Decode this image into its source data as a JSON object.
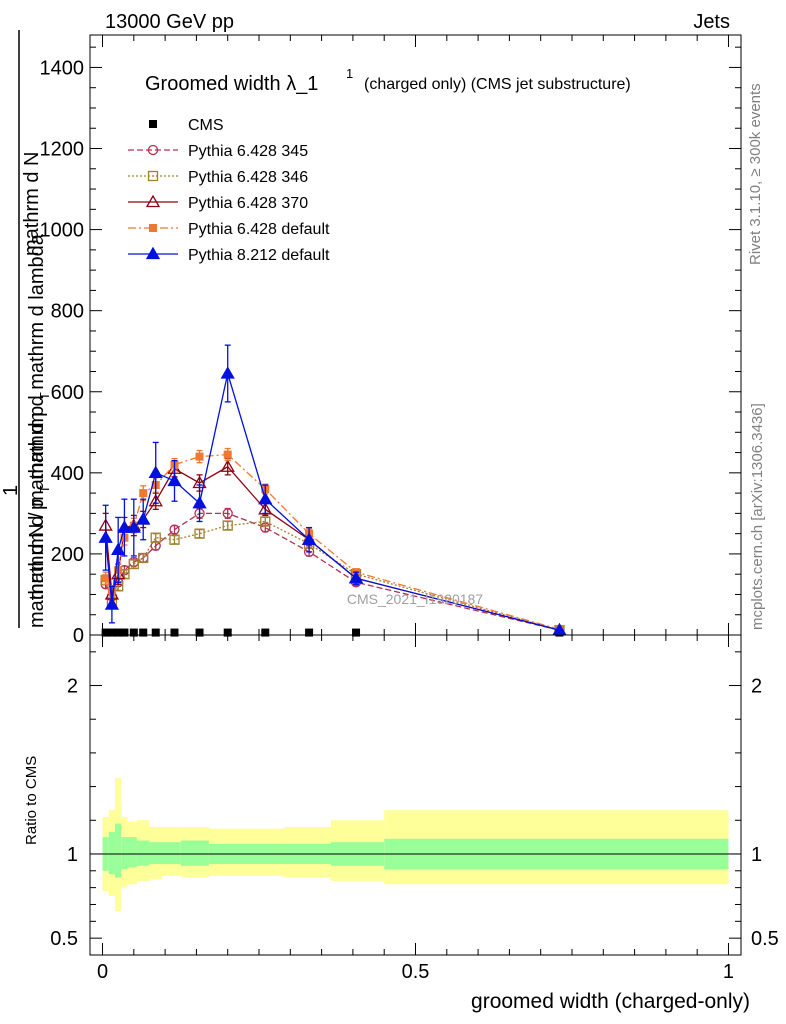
{
  "header": {
    "left": "13000 GeV pp",
    "right": "Jets"
  },
  "side": {
    "rivet": "Rivet 3.1.10, ≥ 300k events",
    "mcplots": "mcplots.cern.ch [arXiv:1306.3436]"
  },
  "watermark": "CMS_2021_I1920187",
  "chart_data": {
    "type": "line",
    "title_main": "Groomed width",
    "title_symbol": "λ_1",
    "title_sup": "1",
    "title_rest": "(charged only) (CMS jet substructure)",
    "ylabel_top_num": "mathrm d",
    "ylabel_top_num_N": "N",
    "ylabel_top_den": "mathrm d p",
    "ylabel_top_den_T": "T",
    "ylabel_top_den_rest": "mathrm d mathrm d lambda",
    "ylabel_bottom": "1",
    "ylabel_bottom_den": "mathrm d N / mathrm d p",
    "ylabel_bottom_den_T": "T",
    "ratio_ylabel": "Ratio to CMS",
    "xlabel": "groomed width (charged-only)",
    "xlim": [
      -0.02,
      1.02
    ],
    "ylim": [
      0,
      1480
    ],
    "ratio_ylim": [
      0.4,
      2.3
    ],
    "x_ticks": [
      {
        "value": 0,
        "label": "0"
      },
      {
        "value": 0.5,
        "label": "0.5"
      },
      {
        "value": 1,
        "label": "1"
      }
    ],
    "y_ticks": [
      {
        "value": 0,
        "label": "0"
      },
      {
        "value": 200,
        "label": "200"
      },
      {
        "value": 400,
        "label": "400"
      },
      {
        "value": 600,
        "label": "600"
      },
      {
        "value": 800,
        "label": "800"
      },
      {
        "value": 1000,
        "label": "1000"
      },
      {
        "value": 1200,
        "label": "1200"
      },
      {
        "value": 1400,
        "label": "1400"
      }
    ],
    "ratio_ticks": [
      {
        "value": 0.5,
        "label": "0.5"
      },
      {
        "value": 1,
        "label": "1"
      },
      {
        "value": 2,
        "label": "2"
      }
    ],
    "cms_x": [
      0.005,
      0.015,
      0.025,
      0.035,
      0.05,
      0.065,
      0.085,
      0.115,
      0.155,
      0.2,
      0.26,
      0.33,
      0.405,
      0.73
    ],
    "cms_y": [
      6,
      6,
      6,
      6,
      6,
      6,
      6,
      6,
      6,
      6,
      6,
      6,
      6,
      6
    ],
    "band_edges": [
      0,
      0.01,
      0.02,
      0.03,
      0.04,
      0.055,
      0.075,
      0.095,
      0.125,
      0.17,
      0.23,
      0.29,
      0.365,
      0.45,
      1.0
    ],
    "band_yellow": [
      [
        0.78,
        1.22
      ],
      [
        0.75,
        1.26
      ],
      [
        0.66,
        1.45
      ],
      [
        0.8,
        1.22
      ],
      [
        0.82,
        1.19
      ],
      [
        0.84,
        1.2
      ],
      [
        0.85,
        1.16
      ],
      [
        0.87,
        1.16
      ],
      [
        0.86,
        1.16
      ],
      [
        0.87,
        1.15
      ],
      [
        0.87,
        1.15
      ],
      [
        0.86,
        1.16
      ],
      [
        0.84,
        1.2
      ],
      [
        0.82,
        1.26
      ],
      [
        0.8,
        1.3
      ]
    ],
    "band_green": [
      [
        0.9,
        1.1
      ],
      [
        0.88,
        1.13
      ],
      [
        0.86,
        1.18
      ],
      [
        0.91,
        1.1
      ],
      [
        0.92,
        1.1
      ],
      [
        0.93,
        1.08
      ],
      [
        0.94,
        1.07
      ],
      [
        0.94,
        1.07
      ],
      [
        0.93,
        1.08
      ],
      [
        0.94,
        1.06
      ],
      [
        0.94,
        1.06
      ],
      [
        0.94,
        1.06
      ],
      [
        0.93,
        1.07
      ],
      [
        0.91,
        1.09
      ],
      [
        0.9,
        1.17
      ]
    ],
    "series": [
      {
        "name": "CMS",
        "color": "#000000",
        "marker": "square-filled",
        "dash": "",
        "x": [],
        "y": [],
        "err": []
      },
      {
        "name": "Pythia 6.428 345",
        "color": "#b03050",
        "marker": "circle-open",
        "dash": "6,3",
        "x": [
          0.005,
          0.015,
          0.025,
          0.035,
          0.05,
          0.065,
          0.085,
          0.115,
          0.155,
          0.2,
          0.26,
          0.33,
          0.405,
          0.73
        ],
        "y": [
          125,
          95,
          130,
          160,
          180,
          190,
          220,
          260,
          300,
          300,
          265,
          205,
          130,
          12
        ],
        "err": [
          10,
          8,
          10,
          10,
          10,
          10,
          10,
          10,
          12,
          12,
          10,
          10,
          8,
          3
        ]
      },
      {
        "name": "Pythia 6.428 346",
        "color": "#a08030",
        "marker": "square-open",
        "dash": "2,2",
        "x": [
          0.005,
          0.015,
          0.025,
          0.035,
          0.05,
          0.065,
          0.085,
          0.115,
          0.155,
          0.2,
          0.26,
          0.33,
          0.405,
          0.73
        ],
        "y": [
          135,
          80,
          120,
          150,
          175,
          190,
          240,
          235,
          250,
          270,
          280,
          225,
          150,
          12
        ],
        "err": [
          10,
          8,
          10,
          10,
          10,
          10,
          10,
          10,
          10,
          10,
          10,
          10,
          8,
          3
        ]
      },
      {
        "name": "Pythia 6.428 370",
        "color": "#900010",
        "marker": "triangle-open",
        "dash": "",
        "x": [
          0.005,
          0.015,
          0.025,
          0.035,
          0.05,
          0.065,
          0.085,
          0.115,
          0.155,
          0.2,
          0.26,
          0.33,
          0.405,
          0.73
        ],
        "y": [
          270,
          100,
          150,
          265,
          270,
          285,
          330,
          410,
          375,
          415,
          310,
          235,
          140,
          12
        ],
        "err": [
          30,
          20,
          25,
          25,
          25,
          20,
          20,
          20,
          20,
          20,
          15,
          15,
          10,
          3
        ]
      },
      {
        "name": "Pythia 6.428 default",
        "color": "#f07830",
        "marker": "square-filled",
        "dash": "8,3,2,3",
        "x": [
          0.005,
          0.015,
          0.025,
          0.035,
          0.05,
          0.065,
          0.085,
          0.115,
          0.155,
          0.2,
          0.26,
          0.33,
          0.405,
          0.73
        ],
        "y": [
          140,
          110,
          160,
          240,
          270,
          350,
          370,
          420,
          440,
          445,
          360,
          250,
          155,
          14
        ],
        "err": [
          15,
          12,
          15,
          18,
          18,
          18,
          18,
          15,
          15,
          15,
          12,
          12,
          8,
          3
        ]
      },
      {
        "name": "Pythia 8.212 default",
        "color": "#0010e0",
        "marker": "triangle-filled",
        "dash": "",
        "x": [
          0.005,
          0.015,
          0.025,
          0.035,
          0.05,
          0.065,
          0.085,
          0.115,
          0.155,
          0.2,
          0.26,
          0.33,
          0.405,
          0.73
        ],
        "y": [
          240,
          75,
          210,
          265,
          265,
          285,
          400,
          380,
          325,
          645,
          335,
          235,
          140,
          12
        ],
        "err": [
          80,
          45,
          80,
          70,
          70,
          50,
          75,
          50,
          45,
          70,
          35,
          30,
          15,
          3
        ]
      }
    ]
  }
}
